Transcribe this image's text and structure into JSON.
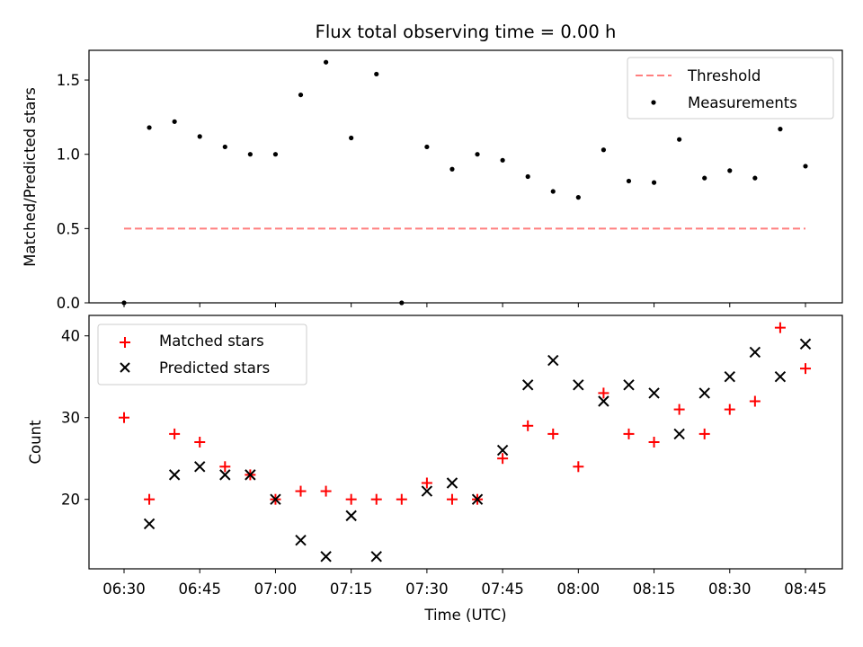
{
  "title": "Flux total observing time = 0.00 h",
  "xlabel": "Time (UTC)",
  "xticks": [
    "06:30",
    "06:45",
    "07:00",
    "07:15",
    "07:30",
    "07:45",
    "08:00",
    "08:15",
    "08:30",
    "08:45"
  ],
  "chart_data": [
    {
      "type": "scatter",
      "panel": "top",
      "ylabel": "Matched/Predicted stars",
      "ylim": [
        0,
        1.7
      ],
      "yticks": [
        "0.0",
        "0.5",
        "1.0",
        "1.5"
      ],
      "x_time_labels": [
        "06:30",
        "06:35",
        "06:40",
        "06:45",
        "06:50",
        "06:55",
        "07:00",
        "07:05",
        "07:10",
        "07:15",
        "07:20",
        "07:25",
        "07:30",
        "07:35",
        "07:40",
        "07:45",
        "07:50",
        "07:55",
        "08:00",
        "08:05",
        "08:10",
        "08:15",
        "08:20",
        "08:25",
        "08:30",
        "08:35",
        "08:40",
        "08:45"
      ],
      "series": [
        {
          "name": "Threshold",
          "style": "dashed-line",
          "color": "#ff7f7f",
          "x": [
            "06:30",
            "08:45"
          ],
          "values": [
            0.5,
            0.5
          ]
        },
        {
          "name": "Measurements",
          "style": "dots",
          "color": "#000000",
          "values": [
            0.0,
            1.18,
            1.22,
            1.12,
            1.05,
            1.0,
            1.0,
            1.4,
            1.62,
            1.11,
            1.54,
            0.0,
            1.05,
            0.9,
            1.0,
            0.96,
            0.85,
            0.75,
            0.71,
            1.03,
            0.82,
            0.81,
            1.1,
            0.84,
            0.89,
            0.84,
            1.17,
            0.92
          ]
        }
      ],
      "legend": "top-right"
    },
    {
      "type": "scatter",
      "panel": "bottom",
      "ylabel": "Count",
      "ylim": [
        11.5,
        42.5
      ],
      "yticks": [
        "20",
        "30",
        "40"
      ],
      "x_time_labels": [
        "06:30",
        "06:35",
        "06:40",
        "06:45",
        "06:50",
        "06:55",
        "07:00",
        "07:05",
        "07:10",
        "07:15",
        "07:20",
        "07:25",
        "07:30",
        "07:35",
        "07:40",
        "07:45",
        "07:50",
        "07:55",
        "08:00",
        "08:05",
        "08:10",
        "08:15",
        "08:20",
        "08:25",
        "08:30",
        "08:35",
        "08:40",
        "08:45"
      ],
      "series": [
        {
          "name": "Matched stars",
          "marker": "plus",
          "color": "#ff0000",
          "values": [
            30,
            20,
            28,
            27,
            24,
            23,
            20,
            21,
            21,
            20,
            20,
            20,
            22,
            20,
            20,
            25,
            29,
            28,
            24,
            33,
            28,
            27,
            31,
            28,
            31,
            32,
            41,
            36
          ]
        },
        {
          "name": "Predicted stars",
          "marker": "x",
          "color": "#000000",
          "values": [
            null,
            17,
            23,
            24,
            23,
            23,
            20,
            15,
            13,
            18,
            13,
            null,
            21,
            22,
            20,
            26,
            34,
            37,
            34,
            32,
            34,
            33,
            28,
            33,
            35,
            38,
            35,
            39
          ]
        }
      ],
      "legend": "top-left"
    }
  ]
}
